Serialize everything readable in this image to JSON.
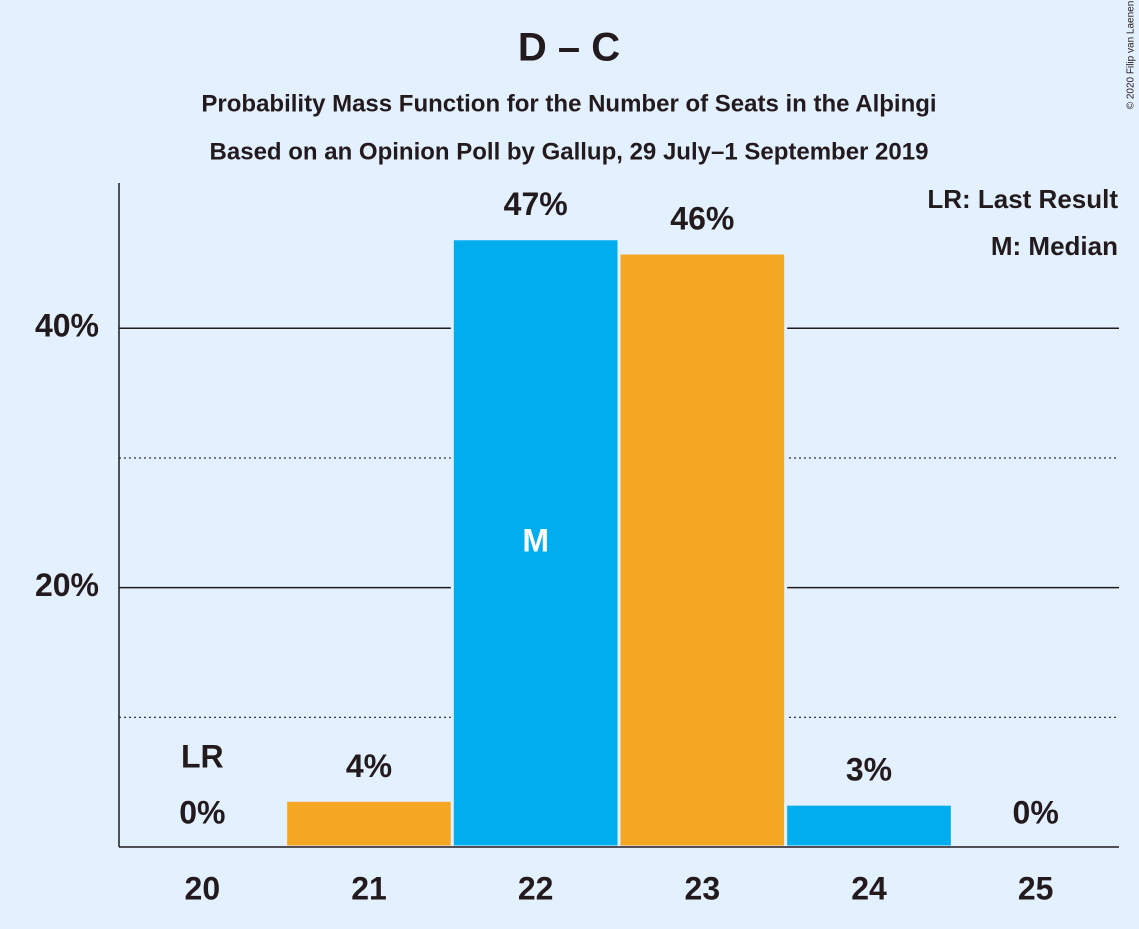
{
  "chart_data": {
    "type": "bar",
    "title": "D – C",
    "subtitle": [
      "Probability Mass Function for the Number of Seats in the Alþingi",
      "Based on an Opinion Poll by Gallup, 29 July–1 September 2019"
    ],
    "categories": [
      "20",
      "21",
      "22",
      "23",
      "24",
      "25"
    ],
    "values": [
      0,
      3.6,
      46.9,
      45.8,
      3.3,
      0
    ],
    "value_labels": [
      "0%",
      "4%",
      "47%",
      "46%",
      "3%",
      "0%"
    ],
    "colors": [
      "#00aeef",
      "#f5a623",
      "#00aeef",
      "#f5a623",
      "#00aeef",
      "#f5a623"
    ],
    "ylim": [
      0,
      51.2
    ],
    "yticks": [
      {
        "value": 20,
        "label": "20%"
      },
      {
        "value": 40,
        "label": "40%"
      }
    ],
    "minor_gridlines": [
      10,
      30
    ],
    "grid": true,
    "markers": [
      {
        "label": "LR",
        "at": "20"
      },
      {
        "label": "M",
        "at": "22"
      }
    ],
    "legend": [
      "LR: Last Result",
      "M: Median"
    ],
    "legend_position": "top-right",
    "copyright": "© 2020 Filip van Laenen"
  }
}
